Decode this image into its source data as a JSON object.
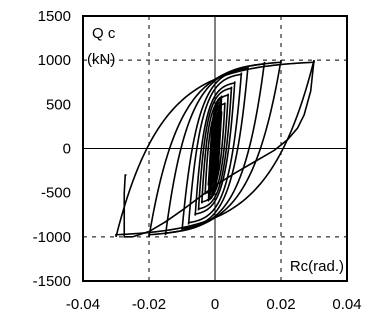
{
  "chart_data": {
    "type": "line",
    "title": "",
    "ylabel": "Q c",
    "yunit": "(kN)",
    "xlabel": "Rc(rad.)",
    "xlim": [
      -0.04,
      0.04
    ],
    "ylim": [
      -1500,
      1500
    ],
    "xticks": [
      -0.04,
      -0.02,
      0,
      0.02,
      0.04
    ],
    "yticks": [
      1500,
      1000,
      500,
      0,
      -500,
      -1000,
      -1500
    ],
    "xtick_labels": [
      "-0.04",
      "-0.02",
      "0",
      "0.02",
      "0.04"
    ],
    "ytick_labels": [
      "1500",
      "1000",
      "500",
      "0",
      "-500",
      "-1000",
      "-1500"
    ],
    "grid": "dashed lines at x=±0.02 and y=±1000",
    "zero_lines": true,
    "legend": "none",
    "hysteresis_loops": [
      {
        "amplitude": 0.002,
        "peak": 420
      },
      {
        "amplitude": 0.003,
        "peak": 520
      },
      {
        "amplitude": 0.004,
        "peak": 620
      },
      {
        "amplitude": 0.005,
        "peak": 700
      },
      {
        "amplitude": 0.006,
        "peak": 760
      },
      {
        "amplitude": 0.008,
        "peak": 860
      },
      {
        "amplitude": 0.01,
        "peak": 930
      },
      {
        "amplitude": 0.015,
        "peak": 980
      },
      {
        "amplitude": 0.02,
        "peak": 1000
      },
      {
        "amplitude": 0.03,
        "peak": 1000
      }
    ],
    "final_branch": {
      "x": [
        0.03,
        0.029,
        0.027,
        0.025,
        0.022,
        0.018,
        0.012,
        0.006,
        0.0,
        -0.005,
        -0.01,
        -0.015,
        -0.02,
        -0.025,
        -0.0275,
        -0.0275,
        -0.0272,
        -0.0268
      ],
      "y": [
        1000,
        650,
        380,
        230,
        100,
        -20,
        -150,
        -280,
        -420,
        -560,
        -700,
        -830,
        -940,
        -1000,
        -1000,
        -500,
        -300,
        -300
      ]
    }
  }
}
